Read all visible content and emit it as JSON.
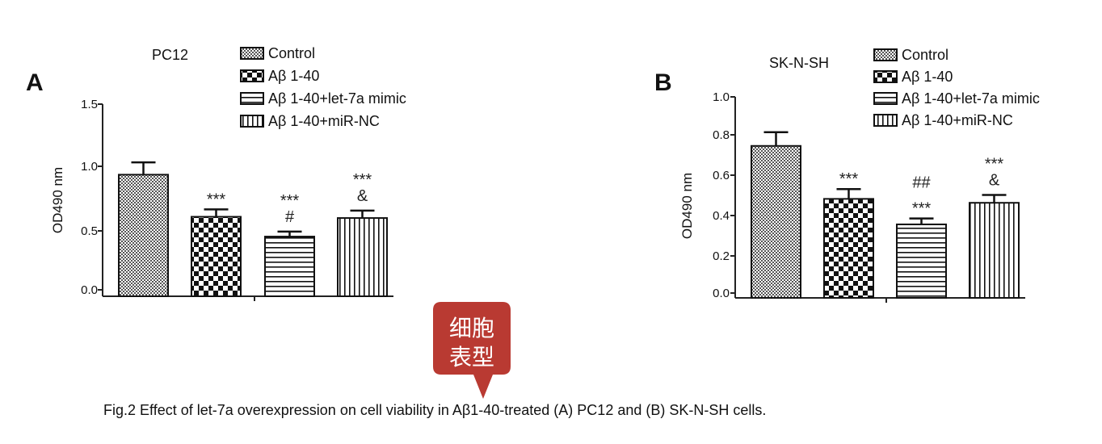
{
  "panels": [
    {
      "letter": "A",
      "title": "PC12",
      "ylabel": "OD490 nm",
      "yticks": [
        "0.0",
        "0.5",
        "1.0",
        "1.5"
      ],
      "legend": [
        "Control",
        "Aβ 1-40",
        "Aβ 1-40+let-7a mimic",
        "Aβ 1-40+miR-NC"
      ]
    },
    {
      "letter": "B",
      "title": "SK-N-SH",
      "ylabel": "OD490 nm",
      "yticks": [
        "0.0",
        "0.2",
        "0.4",
        "0.6",
        "0.8",
        "1.0"
      ],
      "legend": [
        "Control",
        "Aβ 1-40",
        "Aβ 1-40+let-7a mimic",
        "Aβ 1-40+miR-NC"
      ]
    }
  ],
  "chart_data": [
    {
      "type": "bar",
      "title": "PC12",
      "ylabel": "OD490 nm",
      "ylim": [
        0,
        1.5
      ],
      "categories": [
        "Control",
        "Aβ 1-40",
        "Aβ 1-40+let-7a mimic",
        "Aβ 1-40+miR-NC"
      ],
      "values": [
        0.93,
        0.59,
        0.43,
        0.58
      ],
      "errors": [
        0.1,
        0.06,
        0.04,
        0.06
      ],
      "annotations": [
        [],
        [
          "***"
        ],
        [
          "***",
          "#"
        ],
        [
          "***",
          "&"
        ]
      ],
      "legend": "top-right"
    },
    {
      "type": "bar",
      "title": "SK-N-SH",
      "ylabel": "OD490 nm",
      "ylim": [
        0,
        1.0
      ],
      "categories": [
        "Control",
        "Aβ 1-40",
        "Aβ 1-40+let-7a mimic",
        "Aβ 1-40+miR-NC"
      ],
      "values": [
        0.75,
        0.48,
        0.35,
        0.46
      ],
      "errors": [
        0.07,
        0.05,
        0.03,
        0.04
      ],
      "annotations": [
        [],
        [
          "***"
        ],
        [
          "##",
          "***"
        ],
        [
          "***",
          "&"
        ]
      ],
      "legend": "top-right"
    }
  ],
  "badge": {
    "line1": "细胞",
    "line2": "表型",
    "color": "#b93a32"
  },
  "caption": "Fig.2 Effect of let-7a overexpression on cell viability in Aβ1-40-treated (A) PC12 and (B) SK-N-SH cells."
}
